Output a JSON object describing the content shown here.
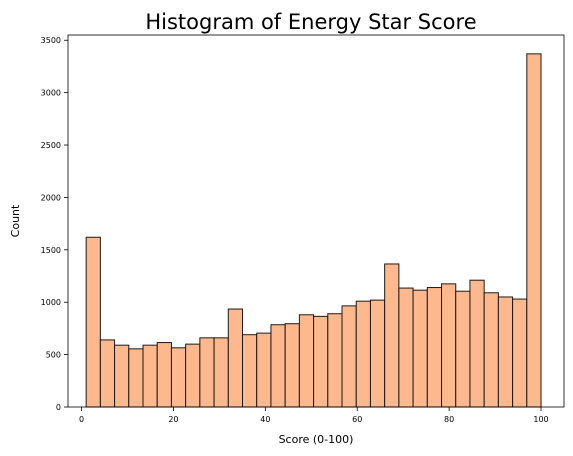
{
  "chart_data": {
    "type": "bar",
    "title": "Histogram of Energy Star Score",
    "xlabel": "Score (0-100)",
    "ylabel": "Count",
    "xlim": [
      -2.95,
      105
    ],
    "ylim": [
      0,
      3550
    ],
    "xticks": [
      0,
      20,
      40,
      60,
      80,
      100
    ],
    "yticks": [
      0,
      500,
      1000,
      1500,
      2000,
      2500,
      3000,
      3500
    ],
    "grid": false,
    "bar_color": "#fdb88e",
    "edge_color": "#1a1a1a",
    "bin_start": 1,
    "bin_end": 100,
    "values": [
      1620,
      640,
      590,
      555,
      590,
      615,
      565,
      600,
      660,
      660,
      935,
      690,
      705,
      785,
      795,
      880,
      865,
      890,
      965,
      1010,
      1020,
      1365,
      1135,
      1115,
      1140,
      1175,
      1105,
      1210,
      1090,
      1050,
      1030,
      3370
    ]
  }
}
